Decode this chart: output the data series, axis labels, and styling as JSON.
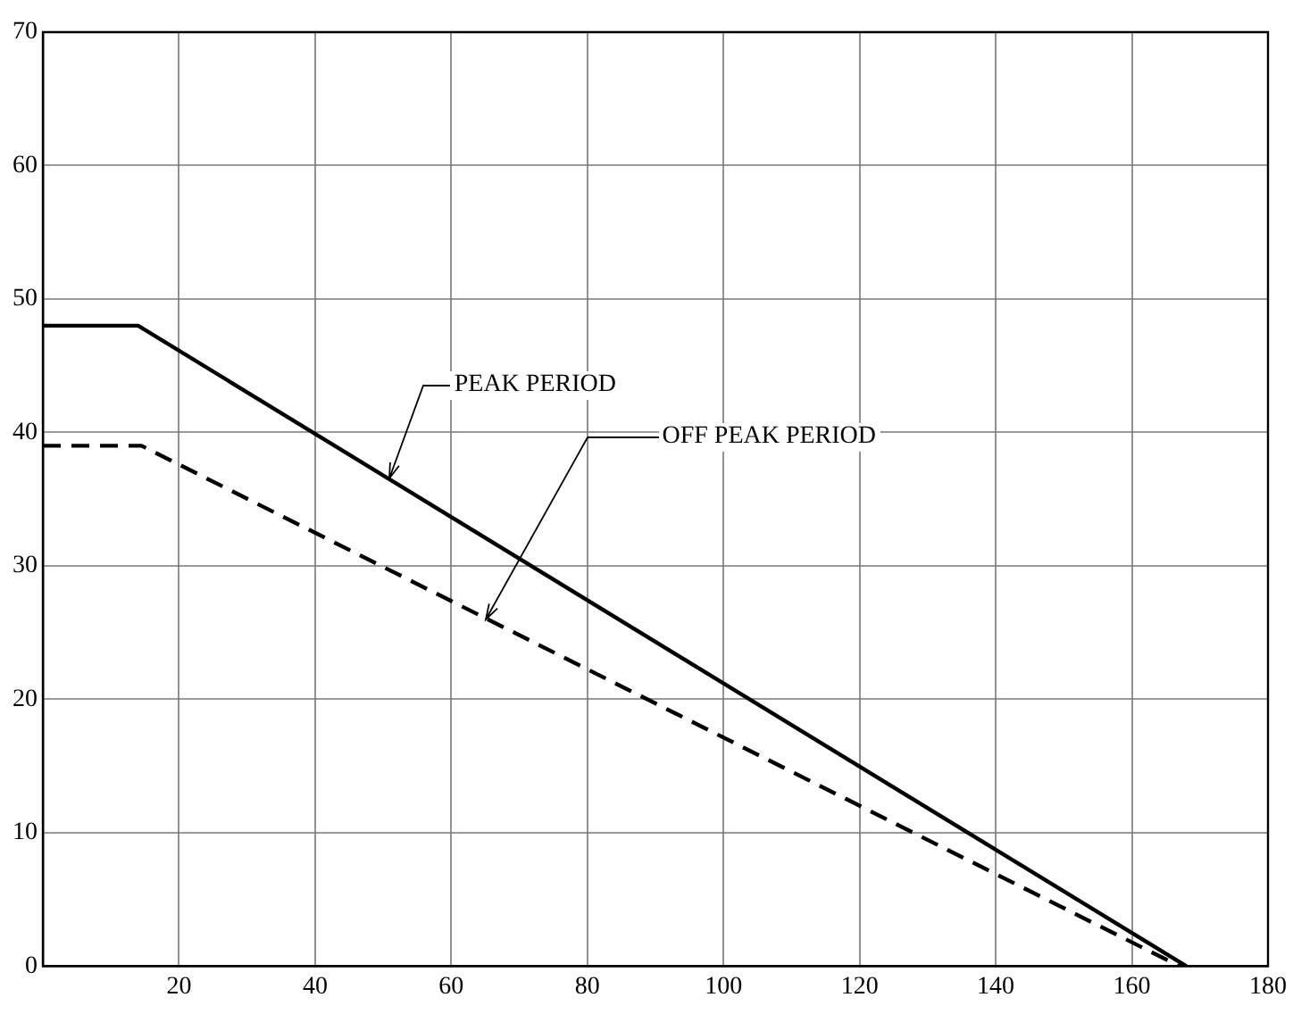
{
  "chart_data": {
    "type": "line",
    "xlim": [
      0,
      180
    ],
    "ylim": [
      0,
      70
    ],
    "xticks": [
      {
        "value": 0,
        "label": null
      },
      20,
      40,
      60,
      80,
      100,
      120,
      140,
      160,
      180
    ],
    "yticks": [
      0,
      10,
      20,
      30,
      40,
      50,
      60,
      70
    ],
    "grid": true,
    "legend": false,
    "marker": "none",
    "series": [
      {
        "color": "#000000",
        "line_style": "solid",
        "x": [
          0,
          14,
          168
        ],
        "values": [
          48,
          48,
          0
        ]
      },
      {
        "color": "#000000",
        "line_style": "dashed",
        "x": [
          0,
          14.5,
          167
        ],
        "values": [
          39,
          39,
          0
        ]
      }
    ],
    "annotations": [
      {
        "text": "PEAK PERIOD",
        "x": 51,
        "y": 36.5
      },
      {
        "text": "OFF PEAK PERIOD",
        "x": 65,
        "y": 26
      }
    ]
  }
}
